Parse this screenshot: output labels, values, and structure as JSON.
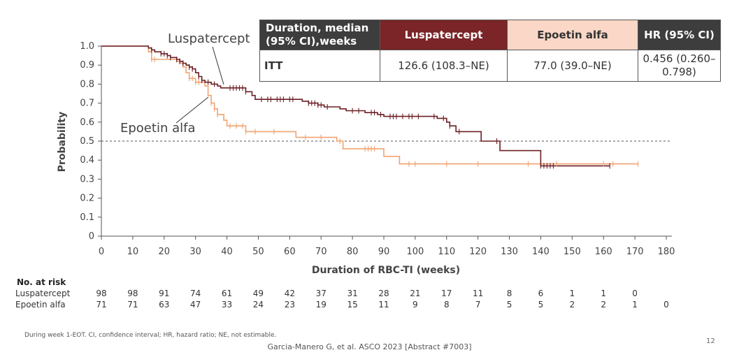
{
  "chart_data": {
    "type": "line",
    "subtype": "kaplan-meier",
    "xlabel": "Duration of RBC-TI (weeks)",
    "ylabel": "Probability",
    "xlim": [
      0,
      180
    ],
    "ylim": [
      0,
      1.0
    ],
    "x_ticks": [
      "0",
      "10",
      "20",
      "30",
      "40",
      "50",
      "60",
      "70",
      "80",
      "90",
      "100",
      "110",
      "120",
      "130",
      "140",
      "150",
      "160",
      "170",
      "180"
    ],
    "y_ticks": [
      "0",
      "0.1",
      "0.2",
      "0.3",
      "0.4",
      "0.5",
      "0.6",
      "0.7",
      "0.8",
      "0.9",
      "1.0"
    ],
    "reference_line": 0.5,
    "series": [
      {
        "name": "Luspatercept",
        "color": "#6b1f24",
        "steps": [
          [
            0,
            1.0
          ],
          [
            14,
            1.0
          ],
          [
            15,
            0.99
          ],
          [
            16,
            0.98
          ],
          [
            17,
            0.97
          ],
          [
            19,
            0.96
          ],
          [
            21,
            0.95
          ],
          [
            22,
            0.94
          ],
          [
            24,
            0.93
          ],
          [
            25,
            0.92
          ],
          [
            26,
            0.91
          ],
          [
            27,
            0.9
          ],
          [
            28,
            0.89
          ],
          [
            29,
            0.88
          ],
          [
            30,
            0.86
          ],
          [
            31,
            0.84
          ],
          [
            32,
            0.82
          ],
          [
            33,
            0.81
          ],
          [
            35,
            0.8
          ],
          [
            37,
            0.79
          ],
          [
            38,
            0.78
          ],
          [
            46,
            0.76
          ],
          [
            48,
            0.74
          ],
          [
            49,
            0.72
          ],
          [
            64,
            0.71
          ],
          [
            66,
            0.7
          ],
          [
            69,
            0.69
          ],
          [
            71,
            0.68
          ],
          [
            76,
            0.67
          ],
          [
            78,
            0.66
          ],
          [
            84,
            0.65
          ],
          [
            88,
            0.64
          ],
          [
            90,
            0.63
          ],
          [
            107,
            0.62
          ],
          [
            110,
            0.6
          ],
          [
            111,
            0.58
          ],
          [
            113,
            0.55
          ],
          [
            121,
            0.5
          ],
          [
            127,
            0.45
          ],
          [
            140,
            0.37
          ],
          [
            162,
            0.37
          ]
        ],
        "censor_x": [
          16,
          19,
          20,
          21,
          22,
          24,
          25,
          26,
          28,
          29,
          31,
          32,
          34,
          36,
          41,
          42,
          43,
          44,
          45,
          46,
          51,
          53,
          54,
          56,
          57,
          58,
          60,
          61,
          66,
          67,
          68,
          69,
          70,
          72,
          80,
          82,
          86,
          87,
          89,
          92,
          93,
          94,
          96,
          98,
          99,
          101,
          106,
          109,
          111,
          114,
          126,
          140,
          141,
          142,
          143,
          144,
          162
        ]
      },
      {
        "name": "Epoetin alfa",
        "color": "#f0a370",
        "steps": [
          [
            0,
            1.0
          ],
          [
            14,
            1.0
          ],
          [
            15,
            0.97
          ],
          [
            16,
            0.93
          ],
          [
            24,
            0.92
          ],
          [
            25,
            0.91
          ],
          [
            26,
            0.89
          ],
          [
            27,
            0.86
          ],
          [
            28,
            0.83
          ],
          [
            30,
            0.81
          ],
          [
            33,
            0.79
          ],
          [
            34,
            0.74
          ],
          [
            35,
            0.7
          ],
          [
            36,
            0.67
          ],
          [
            37,
            0.64
          ],
          [
            39,
            0.61
          ],
          [
            40,
            0.58
          ],
          [
            42,
            0.58
          ],
          [
            46,
            0.55
          ],
          [
            60,
            0.55
          ],
          [
            62,
            0.52
          ],
          [
            75,
            0.5
          ],
          [
            77,
            0.46
          ],
          [
            90,
            0.42
          ],
          [
            95,
            0.38
          ],
          [
            171,
            0.38
          ]
        ],
        "censor_x": [
          16,
          17,
          28,
          29,
          30,
          31,
          35,
          36,
          37,
          41,
          43,
          45,
          46,
          49,
          55,
          65,
          70,
          76,
          84,
          85,
          86,
          87,
          98,
          100,
          110,
          120,
          136,
          145,
          160,
          163,
          171
        ]
      }
    ],
    "annotations": {
      "luspatercept_label": "Luspatercept",
      "epoetin_label": "Epoetin alfa"
    }
  },
  "summary_table": {
    "header_duration": "Duration, median (95% CI),weeks",
    "header_lus": "Luspatercept",
    "header_epo": "Epoetin alfa",
    "header_hr": "HR (95% CI)",
    "row_label": "ITT",
    "lus_value": "126.6 (108.3–NE)",
    "epo_value": "77.0 (39.0–NE)",
    "hr_value": "0.456 (0.260–0.798)"
  },
  "risk_table": {
    "title": "No. at risk",
    "lus_name": "Luspatercept",
    "lus_values": [
      "98",
      "98",
      "91",
      "74",
      "61",
      "49",
      "42",
      "37",
      "31",
      "28",
      "21",
      "17",
      "11",
      "8",
      "6",
      "1",
      "1",
      "0"
    ],
    "epo_name": "Epoetin alfa",
    "epo_values": [
      "71",
      "71",
      "63",
      "47",
      "33",
      "24",
      "23",
      "19",
      "15",
      "11",
      "9",
      "8",
      "7",
      "5",
      "5",
      "2",
      "2",
      "1",
      "0"
    ]
  },
  "footnote": "During week 1-EOT. CI, confidence interval; HR, hazard ratio; NE, not estimable.",
  "citation": "Garcia-Manero G, et al. ASCO 2023 [Abstract #7003]",
  "page_number": "12"
}
